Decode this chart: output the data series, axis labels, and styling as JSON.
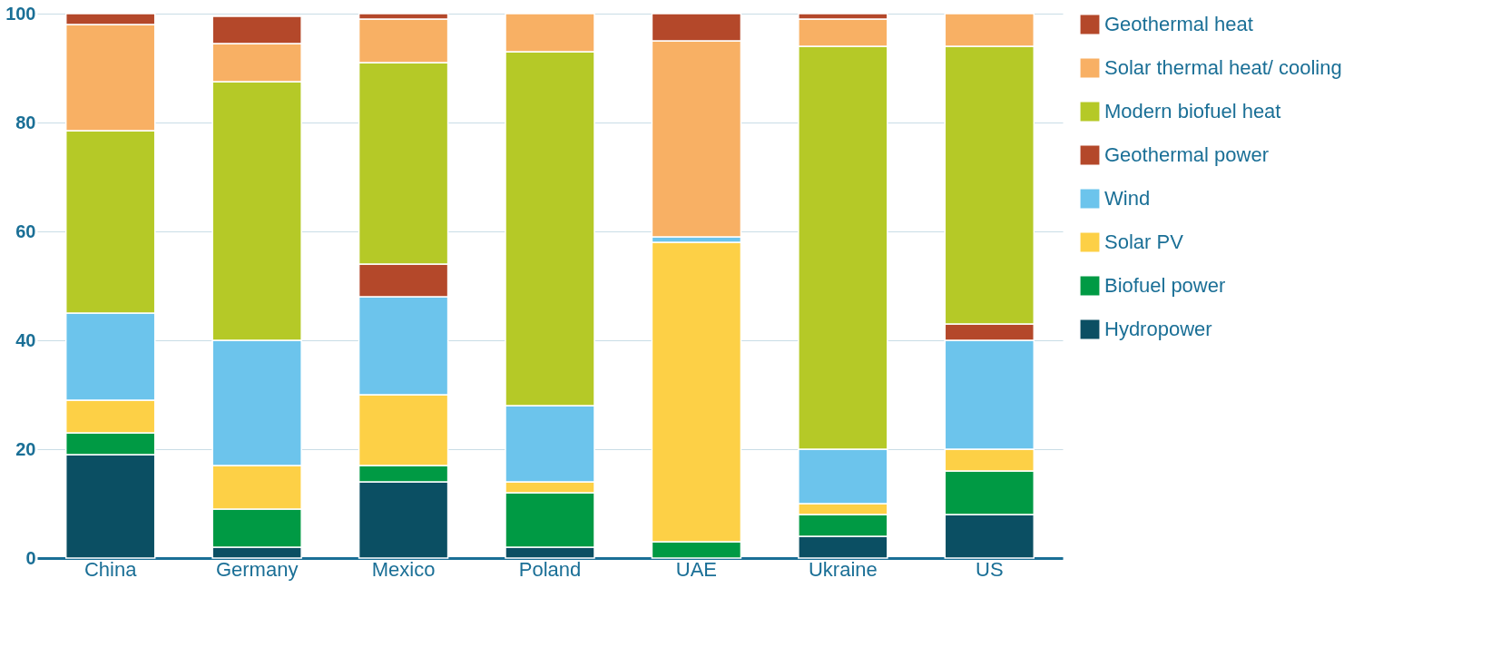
{
  "chart_data": {
    "type": "bar",
    "stacked": true,
    "categories": [
      "China",
      "Germany",
      "Mexico",
      "Poland",
      "UAE",
      "Ukraine",
      "US"
    ],
    "series": [
      {
        "name": "Hydropower",
        "color": "#0b4f63",
        "values": [
          19,
          2,
          14,
          2,
          null,
          4,
          8
        ]
      },
      {
        "name": "Biofuel power",
        "color": "#009a44",
        "values": [
          4,
          7,
          3,
          10,
          3,
          4,
          8
        ]
      },
      {
        "name": "Solar PV",
        "color": "#fdd046",
        "values": [
          6,
          8,
          13,
          2,
          55,
          2,
          4
        ]
      },
      {
        "name": "Wind",
        "color": "#6cc4ec",
        "values": [
          16,
          23,
          18,
          14,
          1,
          10,
          20
        ]
      },
      {
        "name": "Geothermal power",
        "color": "#b4482a",
        "values": [
          null,
          null,
          6,
          null,
          null,
          null,
          3
        ]
      },
      {
        "name": "Modern biofuel heat",
        "color": "#b5c927",
        "values": [
          33.5,
          47.5,
          37,
          65,
          null,
          74,
          51
        ]
      },
      {
        "name": "Solar thermal heat/ cooling",
        "color": "#f8b064",
        "values": [
          19.5,
          7,
          8,
          7,
          36,
          5,
          6
        ]
      },
      {
        "name": "Geothermal heat",
        "color": "#b4482a",
        "values": [
          2,
          5,
          1,
          null,
          5,
          1,
          null
        ]
      }
    ],
    "ylim": [
      0,
      100
    ],
    "yticks": [
      0,
      20,
      40,
      60,
      80,
      100
    ],
    "grid": "y",
    "legend": "right"
  }
}
